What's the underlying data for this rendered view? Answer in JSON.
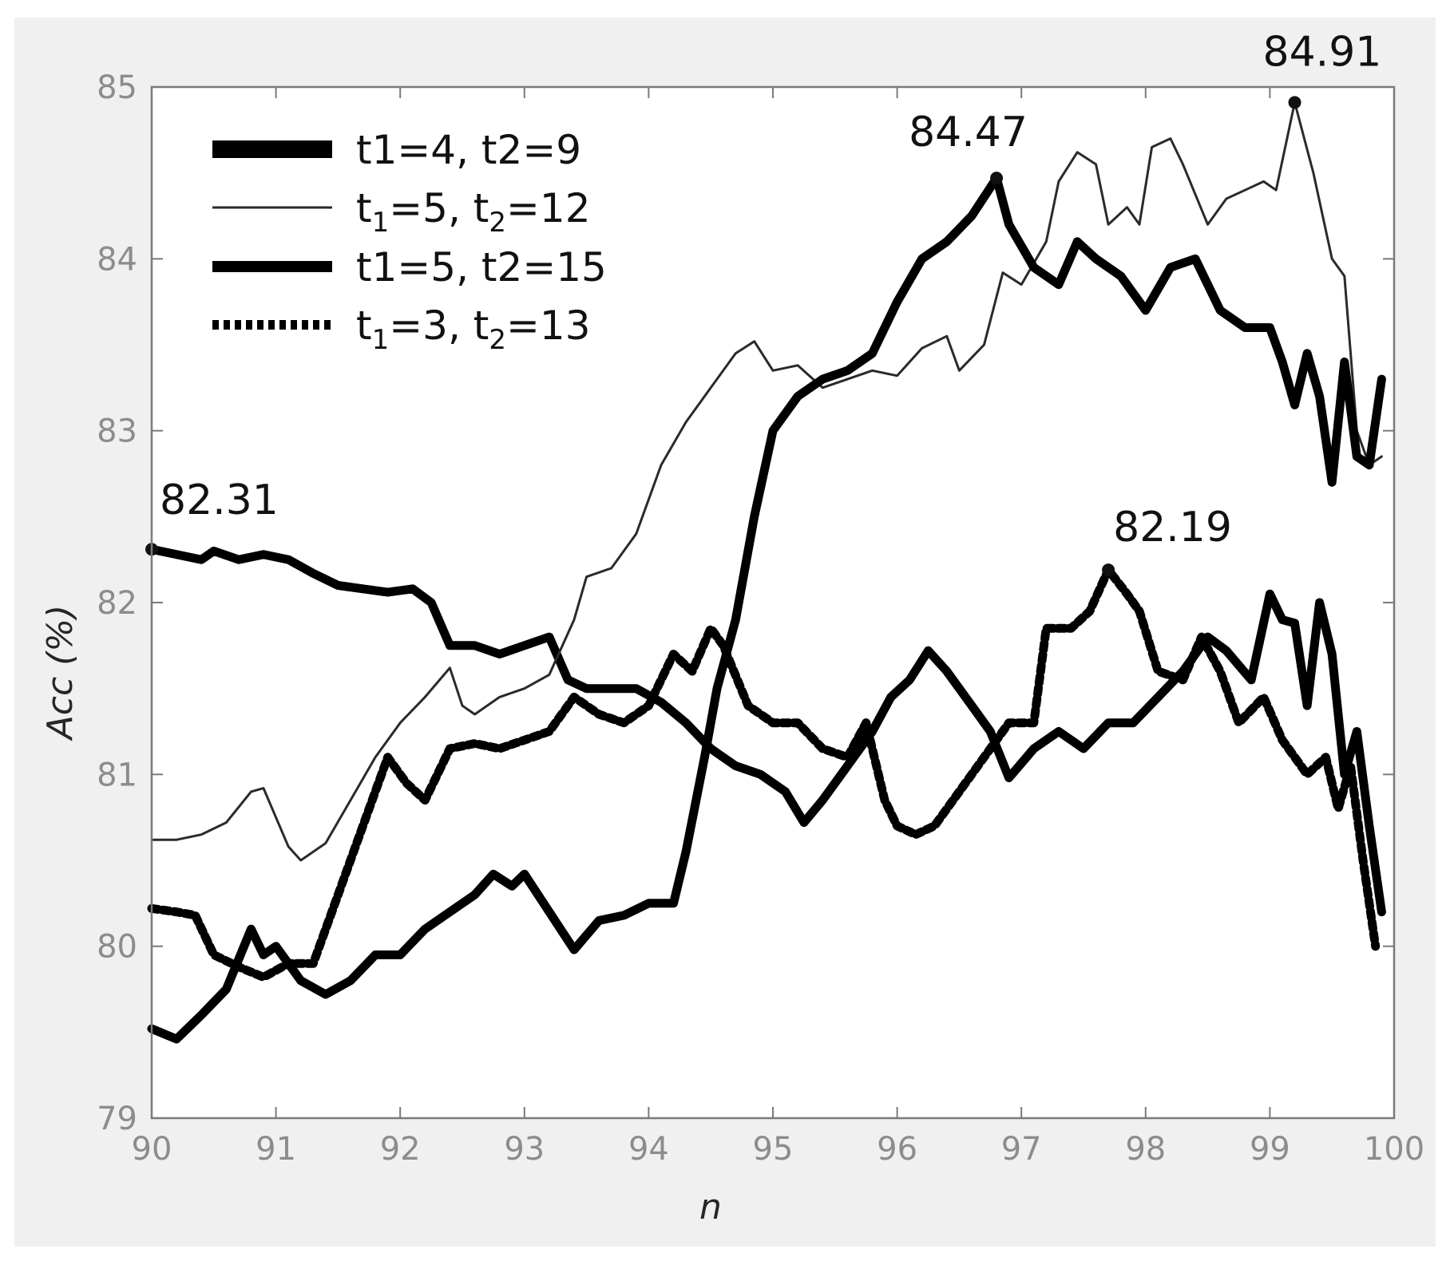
{
  "chart_data": {
    "type": "line",
    "xlabel": "n",
    "ylabel": "Acc (%)",
    "xlim": [
      90,
      100
    ],
    "ylim": [
      79,
      85
    ],
    "xticks": [
      "90",
      "91",
      "92",
      "93",
      "94",
      "95",
      "96",
      "97",
      "98",
      "99",
      "100"
    ],
    "yticks": [
      "79",
      "80",
      "81",
      "82",
      "83",
      "84",
      "85"
    ],
    "legend_position": "top-left",
    "series": [
      {
        "name": "t1=4, t2=9",
        "style": "thick",
        "points": [
          [
            90.0,
            82.31
          ],
          [
            90.2,
            82.28
          ],
          [
            90.4,
            82.25
          ],
          [
            90.5,
            82.3
          ],
          [
            90.7,
            82.25
          ],
          [
            90.9,
            82.28
          ],
          [
            91.1,
            82.25
          ],
          [
            91.3,
            82.17
          ],
          [
            91.5,
            82.1
          ],
          [
            91.7,
            82.08
          ],
          [
            91.9,
            82.06
          ],
          [
            92.1,
            82.08
          ],
          [
            92.25,
            82.0
          ],
          [
            92.4,
            81.75
          ],
          [
            92.6,
            81.75
          ],
          [
            92.8,
            81.7
          ],
          [
            93.0,
            81.75
          ],
          [
            93.2,
            81.8
          ],
          [
            93.35,
            81.55
          ],
          [
            93.5,
            81.5
          ],
          [
            93.7,
            81.5
          ],
          [
            93.9,
            81.5
          ],
          [
            94.1,
            81.42
          ],
          [
            94.3,
            81.3
          ],
          [
            94.5,
            81.15
          ],
          [
            94.7,
            81.05
          ],
          [
            94.9,
            81.0
          ],
          [
            95.1,
            80.9
          ],
          [
            95.25,
            80.72
          ],
          [
            95.4,
            80.85
          ],
          [
            95.6,
            81.05
          ],
          [
            95.8,
            81.25
          ],
          [
            95.95,
            81.45
          ],
          [
            96.1,
            81.55
          ],
          [
            96.25,
            81.72
          ],
          [
            96.4,
            81.6
          ],
          [
            96.6,
            81.4
          ],
          [
            96.75,
            81.25
          ],
          [
            96.9,
            80.98
          ],
          [
            97.1,
            81.15
          ],
          [
            97.3,
            81.25
          ],
          [
            97.5,
            81.15
          ],
          [
            97.7,
            81.3
          ],
          [
            97.9,
            81.3
          ],
          [
            98.1,
            81.45
          ],
          [
            98.3,
            81.6
          ],
          [
            98.5,
            81.8
          ],
          [
            98.65,
            81.72
          ],
          [
            98.85,
            81.55
          ],
          [
            99.0,
            82.05
          ],
          [
            99.1,
            81.9
          ],
          [
            99.2,
            81.88
          ],
          [
            99.3,
            81.4
          ],
          [
            99.4,
            82.0
          ],
          [
            99.5,
            81.7
          ],
          [
            99.6,
            81.0
          ],
          [
            99.7,
            81.25
          ],
          [
            99.8,
            80.7
          ],
          [
            99.9,
            80.2
          ]
        ]
      },
      {
        "name": "t1=5, t2=12",
        "style": "thin",
        "points": [
          [
            90.0,
            80.62
          ],
          [
            90.2,
            80.62
          ],
          [
            90.4,
            80.65
          ],
          [
            90.6,
            80.72
          ],
          [
            90.8,
            80.9
          ],
          [
            90.9,
            80.92
          ],
          [
            91.0,
            80.75
          ],
          [
            91.1,
            80.58
          ],
          [
            91.2,
            80.5
          ],
          [
            91.4,
            80.6
          ],
          [
            91.6,
            80.85
          ],
          [
            91.8,
            81.1
          ],
          [
            92.0,
            81.3
          ],
          [
            92.2,
            81.45
          ],
          [
            92.4,
            81.62
          ],
          [
            92.5,
            81.4
          ],
          [
            92.6,
            81.35
          ],
          [
            92.8,
            81.45
          ],
          [
            93.0,
            81.5
          ],
          [
            93.2,
            81.58
          ],
          [
            93.4,
            81.9
          ],
          [
            93.5,
            82.15
          ],
          [
            93.7,
            82.2
          ],
          [
            93.9,
            82.4
          ],
          [
            94.1,
            82.8
          ],
          [
            94.3,
            83.05
          ],
          [
            94.5,
            83.25
          ],
          [
            94.7,
            83.45
          ],
          [
            94.85,
            83.52
          ],
          [
            95.0,
            83.35
          ],
          [
            95.2,
            83.38
          ],
          [
            95.4,
            83.25
          ],
          [
            95.6,
            83.3
          ],
          [
            95.8,
            83.35
          ],
          [
            96.0,
            83.32
          ],
          [
            96.2,
            83.48
          ],
          [
            96.4,
            83.55
          ],
          [
            96.5,
            83.35
          ],
          [
            96.7,
            83.5
          ],
          [
            96.85,
            83.92
          ],
          [
            97.0,
            83.85
          ],
          [
            97.2,
            84.1
          ],
          [
            97.3,
            84.45
          ],
          [
            97.45,
            84.62
          ],
          [
            97.6,
            84.55
          ],
          [
            97.7,
            84.2
          ],
          [
            97.85,
            84.3
          ],
          [
            97.95,
            84.2
          ],
          [
            98.05,
            84.65
          ],
          [
            98.2,
            84.7
          ],
          [
            98.3,
            84.55
          ],
          [
            98.5,
            84.2
          ],
          [
            98.65,
            84.35
          ],
          [
            98.8,
            84.4
          ],
          [
            98.95,
            84.45
          ],
          [
            99.05,
            84.4
          ],
          [
            99.2,
            84.91
          ],
          [
            99.35,
            84.5
          ],
          [
            99.5,
            84.0
          ],
          [
            99.6,
            83.9
          ],
          [
            99.7,
            83.0
          ],
          [
            99.8,
            82.8
          ],
          [
            99.9,
            82.85
          ]
        ]
      },
      {
        "name": "t1=5, t2=15",
        "style": "thick",
        "points": [
          [
            90.0,
            79.52
          ],
          [
            90.2,
            79.46
          ],
          [
            90.4,
            79.6
          ],
          [
            90.6,
            79.75
          ],
          [
            90.8,
            80.1
          ],
          [
            90.9,
            79.95
          ],
          [
            91.0,
            80.0
          ],
          [
            91.2,
            79.8
          ],
          [
            91.4,
            79.72
          ],
          [
            91.6,
            79.8
          ],
          [
            91.8,
            79.95
          ],
          [
            92.0,
            79.95
          ],
          [
            92.2,
            80.1
          ],
          [
            92.4,
            80.2
          ],
          [
            92.6,
            80.3
          ],
          [
            92.75,
            80.42
          ],
          [
            92.9,
            80.35
          ],
          [
            93.0,
            80.42
          ],
          [
            93.2,
            80.2
          ],
          [
            93.4,
            79.98
          ],
          [
            93.6,
            80.15
          ],
          [
            93.8,
            80.18
          ],
          [
            94.0,
            80.25
          ],
          [
            94.2,
            80.25
          ],
          [
            94.3,
            80.55
          ],
          [
            94.45,
            81.1
          ],
          [
            94.55,
            81.5
          ],
          [
            94.7,
            81.9
          ],
          [
            94.85,
            82.5
          ],
          [
            95.0,
            83.0
          ],
          [
            95.2,
            83.2
          ],
          [
            95.4,
            83.3
          ],
          [
            95.6,
            83.35
          ],
          [
            95.8,
            83.45
          ],
          [
            96.0,
            83.75
          ],
          [
            96.2,
            84.0
          ],
          [
            96.4,
            84.1
          ],
          [
            96.6,
            84.25
          ],
          [
            96.8,
            84.47
          ],
          [
            96.9,
            84.2
          ],
          [
            97.1,
            83.95
          ],
          [
            97.3,
            83.85
          ],
          [
            97.45,
            84.1
          ],
          [
            97.6,
            84.0
          ],
          [
            97.8,
            83.9
          ],
          [
            98.0,
            83.7
          ],
          [
            98.2,
            83.95
          ],
          [
            98.4,
            84.0
          ],
          [
            98.6,
            83.7
          ],
          [
            98.8,
            83.6
          ],
          [
            99.0,
            83.6
          ],
          [
            99.1,
            83.4
          ],
          [
            99.2,
            83.15
          ],
          [
            99.3,
            83.45
          ],
          [
            99.4,
            83.2
          ],
          [
            99.5,
            82.7
          ],
          [
            99.6,
            83.4
          ],
          [
            99.7,
            82.85
          ],
          [
            99.8,
            82.8
          ],
          [
            99.9,
            83.3
          ]
        ]
      },
      {
        "name": "t1=3, t2=13",
        "style": "dotted",
        "points": [
          [
            90.0,
            80.22
          ],
          [
            90.2,
            80.2
          ],
          [
            90.35,
            80.18
          ],
          [
            90.5,
            79.95
          ],
          [
            90.7,
            79.88
          ],
          [
            90.9,
            79.82
          ],
          [
            91.1,
            79.9
          ],
          [
            91.3,
            79.9
          ],
          [
            91.5,
            80.3
          ],
          [
            91.7,
            80.7
          ],
          [
            91.9,
            81.1
          ],
          [
            92.05,
            80.95
          ],
          [
            92.2,
            80.85
          ],
          [
            92.4,
            81.15
          ],
          [
            92.6,
            81.18
          ],
          [
            92.8,
            81.15
          ],
          [
            93.0,
            81.2
          ],
          [
            93.2,
            81.25
          ],
          [
            93.4,
            81.45
          ],
          [
            93.6,
            81.35
          ],
          [
            93.8,
            81.3
          ],
          [
            94.0,
            81.4
          ],
          [
            94.2,
            81.7
          ],
          [
            94.35,
            81.6
          ],
          [
            94.5,
            81.85
          ],
          [
            94.6,
            81.75
          ],
          [
            94.8,
            81.4
          ],
          [
            95.0,
            81.3
          ],
          [
            95.2,
            81.3
          ],
          [
            95.4,
            81.15
          ],
          [
            95.6,
            81.1
          ],
          [
            95.75,
            81.3
          ],
          [
            95.9,
            80.85
          ],
          [
            96.0,
            80.7
          ],
          [
            96.15,
            80.65
          ],
          [
            96.3,
            80.7
          ],
          [
            96.5,
            80.9
          ],
          [
            96.7,
            81.1
          ],
          [
            96.9,
            81.3
          ],
          [
            97.1,
            81.3
          ],
          [
            97.2,
            81.85
          ],
          [
            97.4,
            81.85
          ],
          [
            97.55,
            81.95
          ],
          [
            97.7,
            82.19
          ],
          [
            97.85,
            82.05
          ],
          [
            97.95,
            81.95
          ],
          [
            98.1,
            81.6
          ],
          [
            98.3,
            81.55
          ],
          [
            98.45,
            81.8
          ],
          [
            98.6,
            81.6
          ],
          [
            98.75,
            81.3
          ],
          [
            98.95,
            81.45
          ],
          [
            99.1,
            81.2
          ],
          [
            99.3,
            81.0
          ],
          [
            99.45,
            81.1
          ],
          [
            99.55,
            80.8
          ],
          [
            99.65,
            81.05
          ],
          [
            99.75,
            80.5
          ],
          [
            99.85,
            80.0
          ]
        ]
      }
    ],
    "annotations": [
      {
        "label": "82.31",
        "x": 90.0,
        "y": 82.31
      },
      {
        "label": "84.47",
        "x": 96.8,
        "y": 84.47
      },
      {
        "label": "84.91",
        "x": 99.2,
        "y": 84.91
      },
      {
        "label": "82.19",
        "x": 97.7,
        "y": 82.19
      }
    ],
    "legend_entries": [
      {
        "main": "t1=4, t2=9"
      },
      {
        "main": "t",
        "sub1": "1",
        "mid": "=5, t",
        "sub2": "2",
        "end": "=12"
      },
      {
        "main": "t1=5, t2=15"
      },
      {
        "main": "t",
        "sub1": "1",
        "mid": "=3, t",
        "sub2": "2",
        "end": "=13"
      }
    ]
  }
}
